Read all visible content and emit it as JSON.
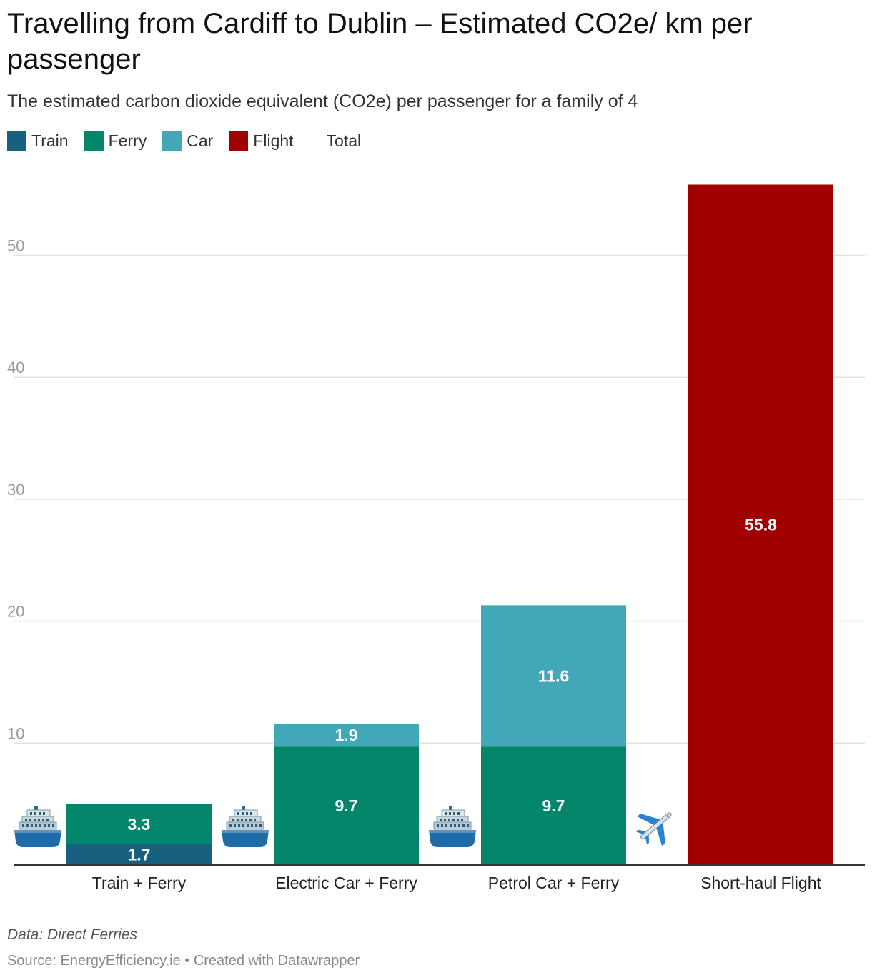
{
  "chart_data": {
    "type": "bar",
    "stacked": true,
    "title": "Travelling from Cardiff to Dublin – Estimated CO2e/ km per passenger",
    "subtitle": "The estimated carbon dioxide equivalent (CO2e) per passenger for a family of 4",
    "categories": [
      "Train + Ferry",
      "Electric Car + Ferry",
      "Petrol Car + Ferry",
      "Short-haul Flight"
    ],
    "category_icons": [
      "ship-icon",
      "ship-icon",
      "ship-icon",
      "airplane-icon"
    ],
    "series": [
      {
        "name": "Train",
        "color": "#17607f",
        "values": [
          1.7,
          0,
          0,
          0
        ],
        "labels": [
          "1.7",
          "",
          "",
          ""
        ]
      },
      {
        "name": "Ferry",
        "color": "#03866a",
        "values": [
          3.3,
          9.7,
          9.7,
          0
        ],
        "labels": [
          "3.3",
          "9.7",
          "9.7",
          ""
        ]
      },
      {
        "name": "Car",
        "color": "#42a7b6",
        "values": [
          0,
          1.9,
          11.6,
          0
        ],
        "labels": [
          "",
          "1.9",
          "11.6",
          ""
        ]
      },
      {
        "name": "Flight",
        "color": "#a10000",
        "values": [
          0,
          0,
          0,
          55.8
        ],
        "labels": [
          "",
          "",
          "",
          "55.8"
        ]
      }
    ],
    "legend": [
      {
        "name": "Train",
        "color": "#17607f"
      },
      {
        "name": "Ferry",
        "color": "#03866a"
      },
      {
        "name": "Car",
        "color": "#42a7b6"
      },
      {
        "name": "Flight",
        "color": "#a10000"
      },
      {
        "name": "Total",
        "color": ""
      }
    ],
    "y_ticks": [
      10,
      20,
      30,
      40,
      50
    ],
    "ylim": [
      0,
      60
    ],
    "grid": true,
    "legend_position": "top-left"
  },
  "footer": {
    "data_note": "Data: Direct Ferries",
    "source": "Source: EnergyEfficiency.ie • Created with Datawrapper"
  }
}
